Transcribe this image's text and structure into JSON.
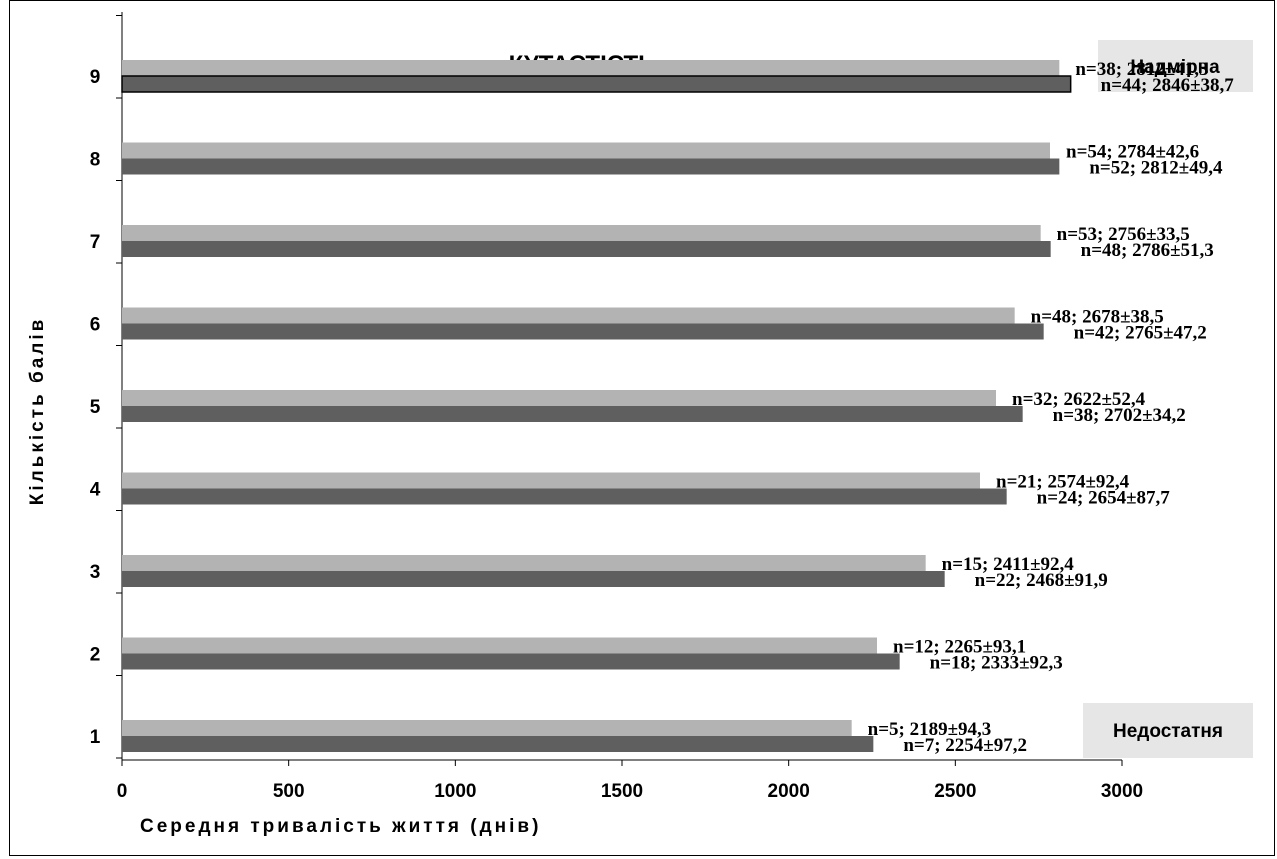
{
  "chart_data": {
    "type": "bar",
    "orientation": "horizontal",
    "title": "КУТАСТІСТЬ",
    "xlabel": "Середня тривалість життя (днів)",
    "ylabel": "Кількість балів",
    "xlim": [
      0,
      3000
    ],
    "xticks": [
      "0",
      "500",
      "1000",
      "1500",
      "2000",
      "2500",
      "3000"
    ],
    "categories": [
      "1",
      "2",
      "3",
      "4",
      "5",
      "6",
      "7",
      "8",
      "9"
    ],
    "series": [
      {
        "color": "#b3b3b3",
        "values": [
          2189,
          2265,
          2411,
          2574,
          2622,
          2678,
          2756,
          2784,
          2812
        ],
        "labels": [
          "n=5; 2189±94,3",
          "n=12; 2265±93,1",
          "n=15; 2411±92,4",
          "n=21; 2574±92,4",
          "n=32; 2622±52,4",
          "n=48; 2678±38,5",
          "n=53; 2756±33,5",
          "n=54; 2784±42,6",
          "n=38; 2812±41,3"
        ]
      },
      {
        "color": "#5f5f5f",
        "values": [
          2254,
          2333,
          2468,
          2654,
          2702,
          2765,
          2786,
          2812,
          2846
        ],
        "labels": [
          "n=7; 2254±97,2",
          "n=18; 2333±92,3",
          "n=22; 2468±91,9",
          "n=24; 2654±87,7",
          "n=38; 2702±34,2",
          "n=42; 2765±47,2",
          "n=48; 2786±51,3",
          "n=52; 2812±49,4",
          "n=44; 2846±38,7"
        ]
      }
    ],
    "annotations": {
      "top_right": "Надмірна",
      "bottom_right": "Недостатня"
    },
    "box_color": "#e6e6e6",
    "grid": false
  }
}
